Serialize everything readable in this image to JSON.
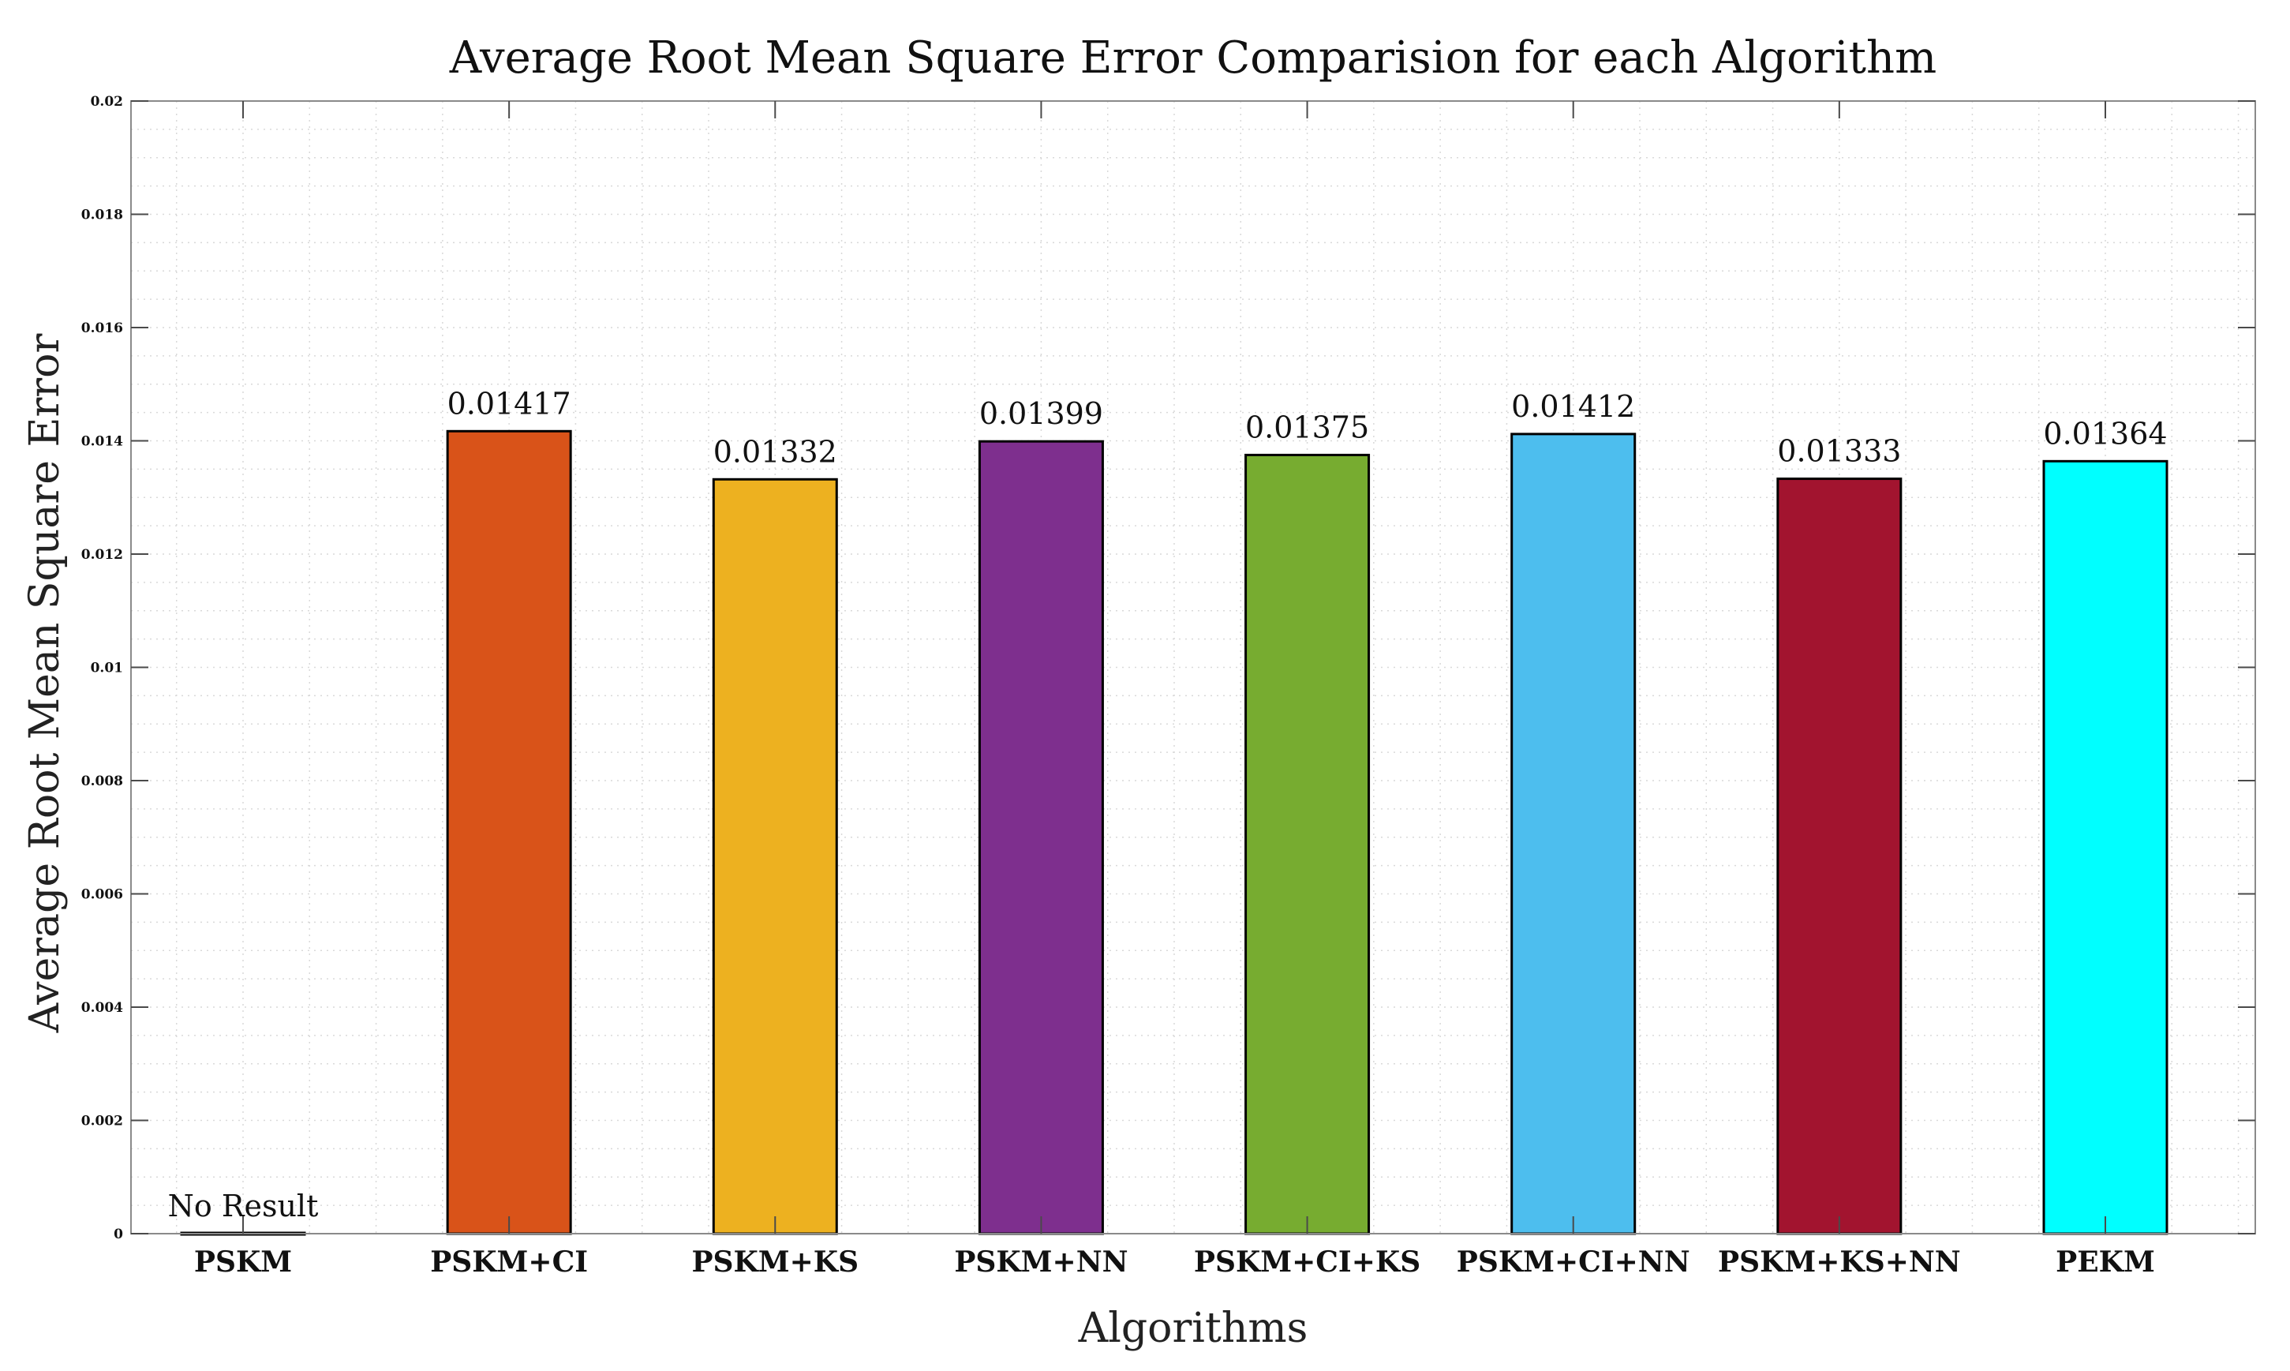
{
  "chart_data": {
    "type": "bar",
    "title": "Average Root Mean Square Error Comparision for each Algorithm",
    "xlabel": "Algorithms",
    "ylabel": "Average Root Mean Square Error",
    "categories": [
      "PSKM",
      "PSKM+CI",
      "PSKM+KS",
      "PSKM+NN",
      "PSKM+CI+KS",
      "PSKM+CI+NN",
      "PSKM+KS+NN",
      "PEKM"
    ],
    "values": [
      0,
      0.01417,
      0.01332,
      0.01399,
      0.01375,
      0.01412,
      0.01333,
      0.01364
    ],
    "bar_labels": [
      "No Result",
      "0.01417",
      "0.01332",
      "0.01399",
      "0.01375",
      "0.01412",
      "0.01333",
      "0.01364"
    ],
    "colors": [
      "#000000",
      "#D95319",
      "#EDB120",
      "#7E2F8E",
      "#77AC30",
      "#4DBEEE",
      "#A2142F",
      "#00FFFF"
    ],
    "ylim": [
      0,
      0.02
    ],
    "yticks": [
      "0",
      "0.002",
      "0.004",
      "0.006",
      "0.008",
      "0.01",
      "0.012",
      "0.014",
      "0.016",
      "0.018",
      "0.02"
    ],
    "grid": true,
    "legend": "none"
  }
}
